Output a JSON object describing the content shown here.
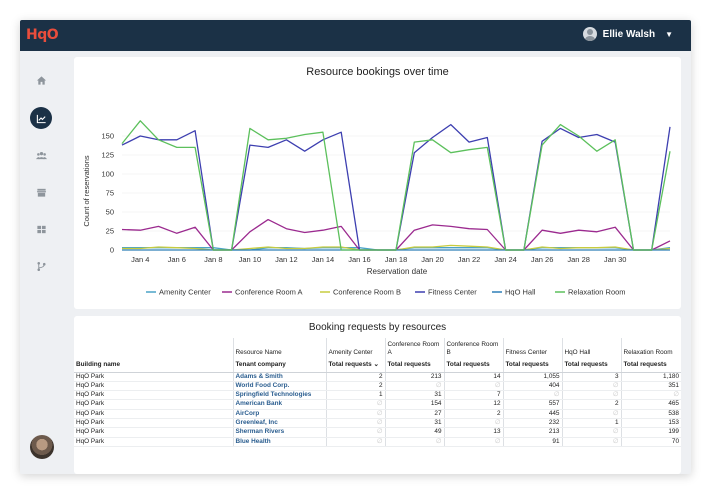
{
  "app": {
    "logo": "HqO",
    "user_name": "Ellie Walsh"
  },
  "sidebar": {
    "items": [
      {
        "icon": "home-icon",
        "active": false
      },
      {
        "icon": "analytics-icon",
        "active": true
      },
      {
        "icon": "people-icon",
        "active": false
      },
      {
        "icon": "store-icon",
        "active": false
      },
      {
        "icon": "grid-icon",
        "active": false
      },
      {
        "icon": "branch-icon",
        "active": false
      }
    ]
  },
  "chart_data": {
    "type": "line",
    "title": "Resource bookings over time",
    "xlabel": "Reservation date",
    "ylabel": "Count of reservations",
    "ylim": [
      0,
      175
    ],
    "yticks": [
      0,
      25,
      50,
      75,
      100,
      125,
      150
    ],
    "x": [
      1,
      2,
      3,
      4,
      5,
      6,
      7,
      8,
      9,
      10,
      11,
      12,
      13,
      14,
      15,
      16,
      17,
      18,
      19,
      20,
      21,
      22,
      23,
      24,
      25,
      26,
      27,
      28,
      29,
      30,
      31
    ],
    "x_tick_labels": [
      "Jan 4",
      "Jan 6",
      "Jan 8",
      "Jan 10",
      "Jan 12",
      "Jan 14",
      "Jan 16",
      "Jan 18",
      "Jan 20",
      "Jan 22",
      "Jan 24",
      "Jan 26",
      "Jan 28",
      "Jan 30"
    ],
    "series": [
      {
        "name": "Amenity Center",
        "color": "#4aa3c7",
        "values": [
          3,
          3,
          3,
          3,
          3,
          3,
          0,
          0,
          3,
          3,
          2,
          3,
          3,
          3,
          0,
          0,
          3,
          3,
          3,
          3,
          3,
          0,
          0,
          3,
          3,
          3,
          3,
          3,
          0,
          0,
          3
        ]
      },
      {
        "name": "Conference Room A",
        "color": "#9b2a8f",
        "values": [
          27,
          26,
          31,
          22,
          30,
          0,
          0,
          24,
          40,
          28,
          23,
          26,
          31,
          0,
          0,
          0,
          26,
          33,
          31,
          28,
          27,
          0,
          0,
          26,
          22,
          26,
          24,
          30,
          0,
          0,
          12
        ]
      },
      {
        "name": "Conference Room B",
        "color": "#c7cc3f",
        "values": [
          2,
          2,
          4,
          3,
          2,
          0,
          0,
          2,
          4,
          2,
          2,
          4,
          4,
          0,
          0,
          0,
          4,
          4,
          6,
          5,
          4,
          0,
          0,
          4,
          2,
          3,
          3,
          4,
          0,
          0,
          2
        ]
      },
      {
        "name": "Fitness Center",
        "color": "#3d3fb0",
        "values": [
          138,
          150,
          145,
          145,
          157,
          0,
          0,
          138,
          135,
          145,
          130,
          145,
          155,
          0,
          0,
          0,
          128,
          148,
          165,
          142,
          148,
          0,
          0,
          143,
          160,
          148,
          152,
          142,
          0,
          0,
          162
        ]
      },
      {
        "name": "HqO Hall",
        "color": "#2d7fb8",
        "values": [
          0,
          0,
          0,
          0,
          0,
          0,
          0,
          0,
          0,
          0,
          0,
          0,
          0,
          0,
          0,
          0,
          0,
          0,
          0,
          0,
          0,
          0,
          0,
          0,
          0,
          0,
          0,
          0,
          0,
          0,
          0
        ]
      },
      {
        "name": "Relaxation Room",
        "color": "#5cc05c",
        "values": [
          140,
          170,
          145,
          135,
          135,
          0,
          0,
          160,
          145,
          147,
          152,
          155,
          0,
          0,
          0,
          0,
          142,
          145,
          128,
          132,
          135,
          0,
          0,
          138,
          165,
          150,
          130,
          145,
          0,
          0,
          130
        ]
      }
    ]
  },
  "table": {
    "title": "Booking requests by resources",
    "header_resource_name": "Resource Name",
    "header_building": "Building name",
    "header_tenant": "Tenant company",
    "resource_columns": [
      "Amenity Center",
      "Conference Room A",
      "Conference Room B",
      "Fitness Center",
      "HqO Hall",
      "Relaxation Room"
    ],
    "total_label": "Total requests",
    "rows": [
      {
        "building": "HqO Park",
        "tenant": "Adams & Smith",
        "values": [
          "2",
          "213",
          "14",
          "1,055",
          "3",
          "1,180"
        ]
      },
      {
        "building": "HqO Park",
        "tenant": "World Food Corp.",
        "values": [
          "2",
          "∅",
          "∅",
          "404",
          "∅",
          "351"
        ]
      },
      {
        "building": "HqO Park",
        "tenant": "Springfield Technologies",
        "values": [
          "1",
          "31",
          "7",
          "∅",
          "∅",
          "∅"
        ]
      },
      {
        "building": "HqO Park",
        "tenant": "American Bank",
        "values": [
          "∅",
          "154",
          "12",
          "557",
          "2",
          "465"
        ]
      },
      {
        "building": "HqO Park",
        "tenant": "AirCorp",
        "values": [
          "∅",
          "27",
          "2",
          "445",
          "∅",
          "538"
        ]
      },
      {
        "building": "HqO Park",
        "tenant": "Greenleaf, Inc",
        "values": [
          "∅",
          "31",
          "∅",
          "232",
          "1",
          "153"
        ]
      },
      {
        "building": "HqO Park",
        "tenant": "Sherman Rivers",
        "values": [
          "∅",
          "49",
          "13",
          "213",
          "∅",
          "199"
        ]
      },
      {
        "building": "HqO Park",
        "tenant": "Blue Health",
        "values": [
          "∅",
          "∅",
          "∅",
          "91",
          "∅",
          "70"
        ]
      }
    ]
  }
}
